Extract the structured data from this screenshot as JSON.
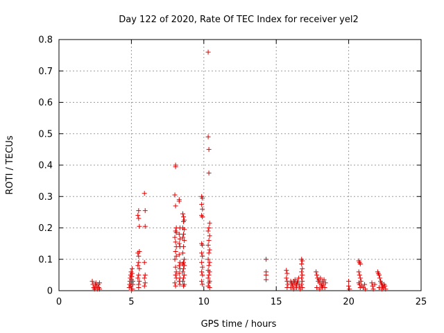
{
  "chart_data": {
    "type": "scatter",
    "title": "Day 122 of 2020, Rate Of TEC Index for receiver yel2",
    "xlabel": "GPS time / hours",
    "ylabel": "ROTI / TECUs",
    "xlim": [
      0,
      25
    ],
    "ylim": [
      0,
      0.8
    ],
    "xticks": [
      0,
      5,
      10,
      15,
      20,
      25
    ],
    "yticks": [
      0,
      0.1,
      0.2,
      0.3,
      0.4,
      0.5,
      0.6,
      0.7,
      0.8
    ],
    "grid": true,
    "marker": "plus",
    "color": "#dd0000",
    "series": [
      {
        "points": [
          [
            2.3,
            0.03
          ],
          [
            2.35,
            0.02
          ],
          [
            2.4,
            0.01
          ],
          [
            2.45,
            0.005
          ],
          [
            2.5,
            0.02
          ],
          [
            2.5,
            0.01
          ],
          [
            2.55,
            0.025
          ],
          [
            2.6,
            0.015
          ],
          [
            2.65,
            0.005
          ],
          [
            2.7,
            0.02
          ],
          [
            2.75,
            0.01
          ],
          [
            2.8,
            0.025
          ],
          [
            2.8,
            0.005
          ],
          [
            4.85,
            0.01
          ],
          [
            4.88,
            0.02
          ],
          [
            4.9,
            0.03
          ],
          [
            4.92,
            0.04
          ],
          [
            4.95,
            0.05
          ],
          [
            4.95,
            0.015
          ],
          [
            4.98,
            0.06
          ],
          [
            5.0,
            0.025
          ],
          [
            5.0,
            0.035
          ],
          [
            5.02,
            0.045
          ],
          [
            5.05,
            0.055
          ],
          [
            5.05,
            0.07
          ],
          [
            5.08,
            0.005
          ],
          [
            5.1,
            0.02
          ],
          [
            5.1,
            0.03
          ],
          [
            5.0,
            0.0
          ],
          [
            5.45,
            0.24
          ],
          [
            5.5,
            0.255
          ],
          [
            5.5,
            0.23
          ],
          [
            5.55,
            0.205
          ],
          [
            5.45,
            0.12
          ],
          [
            5.5,
            0.11
          ],
          [
            5.55,
            0.125
          ],
          [
            5.5,
            0.09
          ],
          [
            5.45,
            0.08
          ],
          [
            5.55,
            0.07
          ],
          [
            5.5,
            0.05
          ],
          [
            5.45,
            0.04
          ],
          [
            5.55,
            0.03
          ],
          [
            5.5,
            0.02
          ],
          [
            5.5,
            0.01
          ],
          [
            5.9,
            0.31
          ],
          [
            5.95,
            0.255
          ],
          [
            5.95,
            0.205
          ],
          [
            5.9,
            0.09
          ],
          [
            5.95,
            0.05
          ],
          [
            5.9,
            0.04
          ],
          [
            5.95,
            0.025
          ],
          [
            5.9,
            0.015
          ],
          [
            8.05,
            0.4
          ],
          [
            8.05,
            0.395
          ],
          [
            8.0,
            0.305
          ],
          [
            8.05,
            0.27
          ],
          [
            8.1,
            0.2
          ],
          [
            8.05,
            0.19
          ],
          [
            8.1,
            0.185
          ],
          [
            8.0,
            0.17
          ],
          [
            8.05,
            0.155
          ],
          [
            8.1,
            0.14
          ],
          [
            8.05,
            0.125
          ],
          [
            8.1,
            0.11
          ],
          [
            8.0,
            0.1
          ],
          [
            8.05,
            0.075
          ],
          [
            8.1,
            0.06
          ],
          [
            8.05,
            0.05
          ],
          [
            8.1,
            0.04
          ],
          [
            8.0,
            0.025
          ],
          [
            8.05,
            0.015
          ],
          [
            8.3,
            0.29
          ],
          [
            8.3,
            0.285
          ],
          [
            8.35,
            0.2
          ],
          [
            8.3,
            0.18
          ],
          [
            8.35,
            0.165
          ],
          [
            8.3,
            0.15
          ],
          [
            8.35,
            0.14
          ],
          [
            8.3,
            0.115
          ],
          [
            8.35,
            0.09
          ],
          [
            8.3,
            0.08
          ],
          [
            8.35,
            0.07
          ],
          [
            8.3,
            0.055
          ],
          [
            8.35,
            0.04
          ],
          [
            8.3,
            0.03
          ],
          [
            8.35,
            0.02
          ],
          [
            8.55,
            0.245
          ],
          [
            8.6,
            0.235
          ],
          [
            8.65,
            0.225
          ],
          [
            8.6,
            0.22
          ],
          [
            8.55,
            0.2
          ],
          [
            8.65,
            0.195
          ],
          [
            8.6,
            0.18
          ],
          [
            8.55,
            0.17
          ],
          [
            8.65,
            0.16
          ],
          [
            8.6,
            0.14
          ],
          [
            8.55,
            0.12
          ],
          [
            8.65,
            0.1
          ],
          [
            8.6,
            0.09
          ],
          [
            8.55,
            0.085
          ],
          [
            8.65,
            0.08
          ],
          [
            8.6,
            0.07
          ],
          [
            8.55,
            0.06
          ],
          [
            8.65,
            0.05
          ],
          [
            8.6,
            0.04
          ],
          [
            8.55,
            0.03
          ],
          [
            8.65,
            0.02
          ],
          [
            8.6,
            0.015
          ],
          [
            9.85,
            0.3
          ],
          [
            9.9,
            0.295
          ],
          [
            9.85,
            0.275
          ],
          [
            9.9,
            0.26
          ],
          [
            9.85,
            0.24
          ],
          [
            9.9,
            0.235
          ],
          [
            9.85,
            0.15
          ],
          [
            9.9,
            0.145
          ],
          [
            9.85,
            0.12
          ],
          [
            9.9,
            0.11
          ],
          [
            9.85,
            0.09
          ],
          [
            9.9,
            0.075
          ],
          [
            9.85,
            0.06
          ],
          [
            9.9,
            0.05
          ],
          [
            9.85,
            0.03
          ],
          [
            9.9,
            0.02
          ],
          [
            10.3,
            0.76
          ],
          [
            10.3,
            0.49
          ],
          [
            10.35,
            0.45
          ],
          [
            10.35,
            0.375
          ],
          [
            10.4,
            0.215
          ],
          [
            10.35,
            0.2
          ],
          [
            10.3,
            0.19
          ],
          [
            10.4,
            0.175
          ],
          [
            10.35,
            0.16
          ],
          [
            10.3,
            0.145
          ],
          [
            10.4,
            0.13
          ],
          [
            10.35,
            0.12
          ],
          [
            10.3,
            0.1
          ],
          [
            10.4,
            0.09
          ],
          [
            10.35,
            0.08
          ],
          [
            10.3,
            0.065
          ],
          [
            10.4,
            0.06
          ],
          [
            10.35,
            0.05
          ],
          [
            10.3,
            0.04
          ],
          [
            10.4,
            0.03
          ],
          [
            10.35,
            0.025
          ],
          [
            10.3,
            0.015
          ],
          [
            10.4,
            0.01
          ],
          [
            14.3,
            0.1
          ],
          [
            14.3,
            0.06
          ],
          [
            14.3,
            0.05
          ],
          [
            14.3,
            0.035
          ],
          [
            15.7,
            0.065
          ],
          [
            15.75,
            0.055
          ],
          [
            15.7,
            0.04
          ],
          [
            15.75,
            0.03
          ],
          [
            15.8,
            0.02
          ],
          [
            15.75,
            0.01
          ],
          [
            16.0,
            0.03
          ],
          [
            16.05,
            0.025
          ],
          [
            16.1,
            0.02
          ],
          [
            16.15,
            0.015
          ],
          [
            16.2,
            0.03
          ],
          [
            16.25,
            0.025
          ],
          [
            16.3,
            0.035
          ],
          [
            16.35,
            0.02
          ],
          [
            16.4,
            0.01
          ],
          [
            16.45,
            0.03
          ],
          [
            16.5,
            0.025
          ],
          [
            16.55,
            0.04
          ],
          [
            16.6,
            0.015
          ],
          [
            16.65,
            0.005
          ],
          [
            16.0,
            0.01
          ],
          [
            16.2,
            0.005
          ],
          [
            16.4,
            0.02
          ],
          [
            16.75,
            0.1
          ],
          [
            16.8,
            0.095
          ],
          [
            16.75,
            0.085
          ],
          [
            16.8,
            0.07
          ],
          [
            16.75,
            0.06
          ],
          [
            16.8,
            0.05
          ],
          [
            16.75,
            0.04
          ],
          [
            16.8,
            0.03
          ],
          [
            16.75,
            0.02
          ],
          [
            16.8,
            0.01
          ],
          [
            17.75,
            0.06
          ],
          [
            17.8,
            0.05
          ],
          [
            17.85,
            0.04
          ],
          [
            17.9,
            0.03
          ],
          [
            17.95,
            0.035
          ],
          [
            18.0,
            0.025
          ],
          [
            18.05,
            0.04
          ],
          [
            18.1,
            0.02
          ],
          [
            18.15,
            0.015
          ],
          [
            18.2,
            0.03
          ],
          [
            18.25,
            0.02
          ],
          [
            18.3,
            0.035
          ],
          [
            18.35,
            0.01
          ],
          [
            18.4,
            0.025
          ],
          [
            17.8,
            0.01
          ],
          [
            18.0,
            0.005
          ],
          [
            18.2,
            0.01
          ],
          [
            20.0,
            0.03
          ],
          [
            20.0,
            0.015
          ],
          [
            20.05,
            0.005
          ],
          [
            20.7,
            0.095
          ],
          [
            20.75,
            0.09
          ],
          [
            20.8,
            0.085
          ],
          [
            20.7,
            0.06
          ],
          [
            20.75,
            0.05
          ],
          [
            20.8,
            0.04
          ],
          [
            20.7,
            0.025
          ],
          [
            20.75,
            0.02
          ],
          [
            20.8,
            0.01
          ],
          [
            20.85,
            0.03
          ],
          [
            20.9,
            0.015
          ],
          [
            21.0,
            0.01
          ],
          [
            21.1,
            0.02
          ],
          [
            21.15,
            0.005
          ],
          [
            21.6,
            0.025
          ],
          [
            21.65,
            0.015
          ],
          [
            21.7,
            0.005
          ],
          [
            21.8,
            0.02
          ],
          [
            22.0,
            0.06
          ],
          [
            22.05,
            0.055
          ],
          [
            22.1,
            0.05
          ],
          [
            22.15,
            0.04
          ],
          [
            22.2,
            0.03
          ],
          [
            22.25,
            0.025
          ],
          [
            22.3,
            0.02
          ],
          [
            22.35,
            0.015
          ],
          [
            22.4,
            0.01
          ],
          [
            22.45,
            0.02
          ],
          [
            22.5,
            0.015
          ],
          [
            22.55,
            0.005
          ],
          [
            22.1,
            0.01
          ],
          [
            22.3,
            0.005
          ]
        ]
      }
    ]
  }
}
